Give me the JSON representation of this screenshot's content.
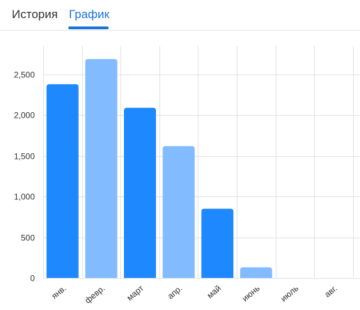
{
  "tabs": [
    {
      "label": "История",
      "active": false
    },
    {
      "label": "График",
      "active": true
    }
  ],
  "colors": {
    "accent": "#1a73d9",
    "bar_primary": "#1e88ff",
    "bar_secondary": "#82bbff",
    "grid": "#e2e2e2",
    "axis_text": "#333333"
  },
  "chart_data": {
    "type": "bar",
    "categories": [
      "янв.",
      "февр.",
      "март",
      "апр.",
      "май",
      "июнь",
      "июль",
      "авг."
    ],
    "values": [
      2380,
      2690,
      2090,
      1620,
      850,
      130,
      0,
      0
    ],
    "bar_colors": [
      "#1e88ff",
      "#82bbff",
      "#1e88ff",
      "#82bbff",
      "#1e88ff",
      "#82bbff",
      "#1e88ff",
      "#82bbff"
    ],
    "yticks": [
      0,
      500,
      1000,
      1500,
      2000,
      2500
    ],
    "ytick_labels": [
      "0",
      "500",
      "1,000",
      "1,500",
      "2,000",
      "2,500"
    ],
    "ylim": [
      0,
      2850
    ],
    "title": "",
    "xlabel": "",
    "ylabel": "",
    "grid": true,
    "legend": "none"
  }
}
